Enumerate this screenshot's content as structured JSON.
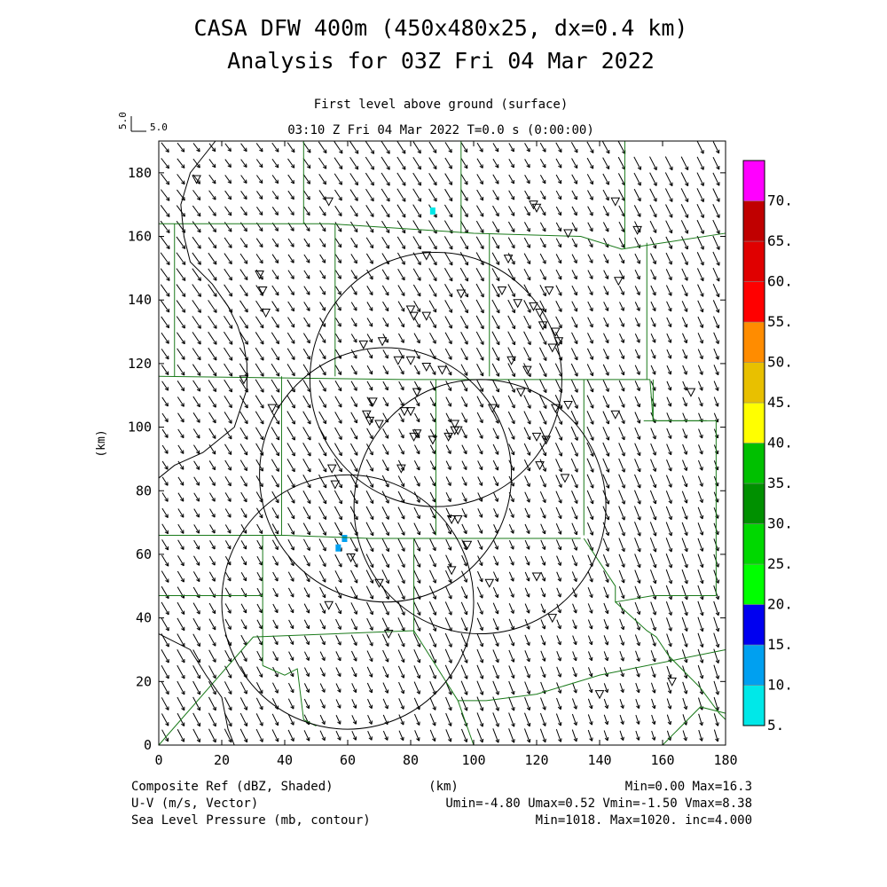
{
  "header": {
    "title_line1": "CASA DFW 400m (450x480x25, dx=0.4 km)",
    "title_line2": "Analysis for 03Z Fri 04 Mar 2022",
    "level": "First level above ground (surface)",
    "time": "03:10 Z Fri 04 Mar 2022    T=0.0 s (0:00:00)",
    "vector_scale_label": "5.0",
    "vector_scale_label_vertical": "5.0"
  },
  "footer": {
    "line1_left": "Composite Ref (dBZ, Shaded)",
    "line1_center": "(km)",
    "line1_right": "Min=0.00 Max=16.3",
    "line2_left": "U-V (m/s, Vector)",
    "line2_right": "Umin=-4.80 Umax=0.52 Vmin=-1.50 Vmax=8.38",
    "line3_left": "Sea Level Pressure (mb, contour)",
    "line3_right": "Min=1018. Max=1020. inc=4.000"
  },
  "chart_data": {
    "type": "map",
    "xlabel": "",
    "ylabel": "(km)",
    "xlim": [
      0,
      180
    ],
    "ylim": [
      0,
      190
    ],
    "x_ticks": [
      0,
      20,
      40,
      60,
      80,
      100,
      120,
      140,
      160,
      180
    ],
    "y_ticks": [
      0,
      20,
      40,
      60,
      80,
      100,
      120,
      140,
      160,
      180
    ],
    "colorbar": {
      "labels": [
        "5.",
        "10.",
        "15.",
        "20.",
        "25.",
        "30.",
        "35.",
        "40.",
        "45.",
        "50.",
        "55.",
        "60.",
        "65.",
        "70."
      ],
      "colors": [
        "#00e8e8",
        "#00a0f0",
        "#0000f0",
        "#00ff00",
        "#00d800",
        "#009000",
        "#00c000",
        "#ffff00",
        "#e8c000",
        "#ff8c00",
        "#ff0000",
        "#e00000",
        "#c00000",
        "#ff00ff"
      ]
    },
    "wind_field": {
      "umin": -4.8,
      "umax": 0.52,
      "vmin": -1.5,
      "vmax": 8.38,
      "dominant_direction": "from north-northwest toward south-southeast",
      "grid_spacing_km": 5
    },
    "radar_circles_center_radius_km": [
      {
        "x": 88,
        "y": 115,
        "r": 40
      },
      {
        "x": 102,
        "y": 75,
        "r": 40
      },
      {
        "x": 60,
        "y": 45,
        "r": 40
      },
      {
        "x": 72,
        "y": 85,
        "r": 40
      }
    ],
    "reflectivity_echoes_km": [
      {
        "x": 59,
        "y": 65,
        "dbz": 12
      },
      {
        "x": 57,
        "y": 62,
        "dbz": 12
      },
      {
        "x": 87,
        "y": 168,
        "dbz": 6
      }
    ],
    "station_markers_km": [
      [
        12,
        178
      ],
      [
        54,
        171
      ],
      [
        119,
        170
      ],
      [
        120,
        169
      ],
      [
        145,
        171
      ],
      [
        130,
        161
      ],
      [
        152,
        162
      ],
      [
        85,
        154
      ],
      [
        111,
        153
      ],
      [
        32,
        148
      ],
      [
        33,
        143
      ],
      [
        96,
        142
      ],
      [
        109,
        143
      ],
      [
        124,
        143
      ],
      [
        146,
        146
      ],
      [
        34,
        136
      ],
      [
        80,
        137
      ],
      [
        81,
        135
      ],
      [
        85,
        135
      ],
      [
        114,
        139
      ],
      [
        119,
        138
      ],
      [
        121,
        136
      ],
      [
        122,
        132
      ],
      [
        125,
        125
      ],
      [
        126,
        130
      ],
      [
        127,
        127
      ],
      [
        65,
        126
      ],
      [
        71,
        127
      ],
      [
        76,
        121
      ],
      [
        80,
        121
      ],
      [
        85,
        119
      ],
      [
        90,
        118
      ],
      [
        112,
        121
      ],
      [
        117,
        118
      ],
      [
        27,
        115
      ],
      [
        82,
        111
      ],
      [
        115,
        111
      ],
      [
        169,
        111
      ],
      [
        36,
        106
      ],
      [
        68,
        108
      ],
      [
        78,
        105
      ],
      [
        80,
        105
      ],
      [
        106,
        106
      ],
      [
        126,
        106
      ],
      [
        130,
        107
      ],
      [
        145,
        104
      ],
      [
        66,
        104
      ],
      [
        67,
        102
      ],
      [
        70,
        101
      ],
      [
        94,
        101
      ],
      [
        95,
        99
      ],
      [
        92,
        97
      ],
      [
        94,
        99
      ],
      [
        81,
        97
      ],
      [
        82,
        98
      ],
      [
        87,
        96
      ],
      [
        120,
        97
      ],
      [
        123,
        96
      ],
      [
        77,
        87
      ],
      [
        121,
        88
      ],
      [
        129,
        84
      ],
      [
        55,
        87
      ],
      [
        56,
        82
      ],
      [
        93,
        71
      ],
      [
        95,
        71
      ],
      [
        98,
        63
      ],
      [
        61,
        59
      ],
      [
        93,
        55
      ],
      [
        70,
        51
      ],
      [
        105,
        51
      ],
      [
        120,
        53
      ],
      [
        54,
        44
      ],
      [
        125,
        40
      ],
      [
        73,
        35
      ],
      [
        140,
        16
      ],
      [
        163,
        20
      ]
    ]
  }
}
